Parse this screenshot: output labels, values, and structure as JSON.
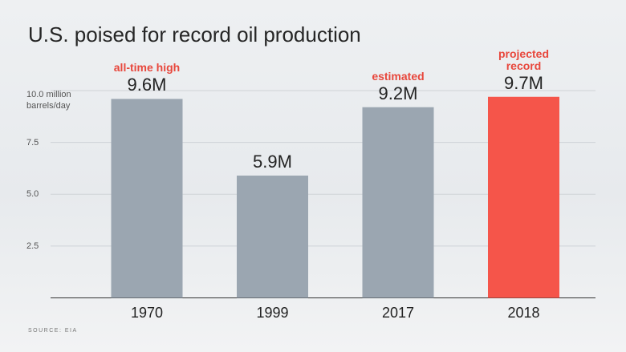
{
  "chart_data": {
    "type": "bar",
    "title": "U.S. poised for record oil production",
    "categories": [
      "1970",
      "1999",
      "2017",
      "2018"
    ],
    "values": [
      9.6,
      5.9,
      9.2,
      9.7
    ],
    "value_labels": [
      "9.6M",
      "5.9M",
      "9.2M",
      "9.7M"
    ],
    "annotations": [
      "all-time high",
      null,
      "estimated",
      "projected record"
    ],
    "colors": [
      "#9ba6b1",
      "#9ba6b1",
      "#9ba6b1",
      "#f5554a"
    ],
    "ylim": [
      0,
      10
    ],
    "yticks": [
      2.5,
      {
        "value": 5,
        "label": "5.0"
      },
      7.5,
      {
        "value": 10,
        "label": "10.0 million barrels/day"
      }
    ],
    "grid": true,
    "source": "SOURCE: EIA"
  }
}
